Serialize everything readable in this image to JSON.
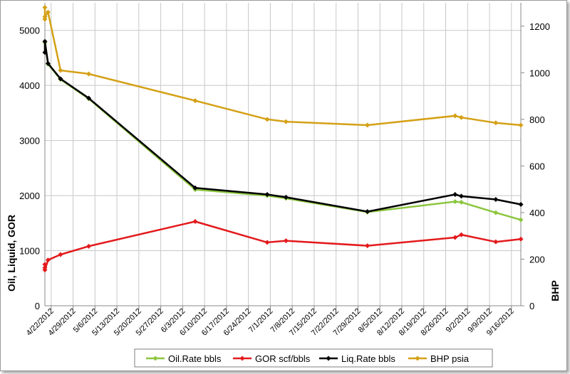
{
  "chart_data": {
    "type": "line",
    "x_tick_labels": [
      "4/22/2012",
      "4/29/2012",
      "5/6/2012",
      "5/13/2012",
      "5/20/2012",
      "5/27/2012",
      "6/3/2012",
      "6/10/2012",
      "6/17/2012",
      "6/24/2012",
      "7/1/2012",
      "7/8/2012",
      "7/15/2012",
      "7/22/2012",
      "7/29/2012",
      "8/5/2012",
      "8/12/2012",
      "8/19/2012",
      "8/26/2012",
      "9/2/2012",
      "9/9/2012",
      "9/16/2012"
    ],
    "x_range": [
      "4/20/2012",
      "9/19/2012"
    ],
    "y_left": {
      "label": "Oil, Liquid, GOR",
      "range": [
        0,
        5500
      ],
      "ticks": [
        0,
        1000,
        2000,
        3000,
        4000,
        5000
      ]
    },
    "y_right": {
      "label": "BHP",
      "range": [
        0,
        1300
      ],
      "ticks": [
        0,
        200,
        400,
        600,
        800,
        1000,
        1200
      ]
    },
    "grid": true,
    "legend_position": "bottom",
    "series": [
      {
        "name": "Oil.Rate bbls",
        "axis": "left",
        "color": "#8cc63f",
        "points": [
          [
            "4/20/2012",
            4600
          ],
          [
            "4/20/2012",
            4780
          ],
          [
            "4/21/2012",
            4390
          ],
          [
            "4/25/2012",
            4110
          ],
          [
            "5/4/2012",
            3760
          ],
          [
            "6/7/2012",
            2110
          ],
          [
            "6/30/2012",
            2000
          ],
          [
            "7/6/2012",
            1950
          ],
          [
            "8/1/2012",
            1700
          ],
          [
            "8/29/2012",
            1890
          ],
          [
            "8/31/2012",
            1880
          ],
          [
            "9/11/2012",
            1690
          ],
          [
            "9/19/2012",
            1560
          ]
        ]
      },
      {
        "name": "GOR scf/bbls",
        "axis": "left",
        "color": "#e31a1c",
        "points": [
          [
            "4/20/2012",
            690
          ],
          [
            "4/20/2012",
            750
          ],
          [
            "4/20/2012",
            650
          ],
          [
            "4/21/2012",
            830
          ],
          [
            "4/25/2012",
            930
          ],
          [
            "5/4/2012",
            1080
          ],
          [
            "6/7/2012",
            1530
          ],
          [
            "6/30/2012",
            1150
          ],
          [
            "7/6/2012",
            1180
          ],
          [
            "8/1/2012",
            1090
          ],
          [
            "8/29/2012",
            1240
          ],
          [
            "8/31/2012",
            1290
          ],
          [
            "9/11/2012",
            1160
          ],
          [
            "9/19/2012",
            1210
          ]
        ]
      },
      {
        "name": "Liq.Rate bbls",
        "axis": "left",
        "color": "#000000",
        "points": [
          [
            "4/20/2012",
            4600
          ],
          [
            "4/20/2012",
            4800
          ],
          [
            "4/21/2012",
            4400
          ],
          [
            "4/25/2012",
            4120
          ],
          [
            "5/4/2012",
            3770
          ],
          [
            "6/7/2012",
            2140
          ],
          [
            "6/30/2012",
            2020
          ],
          [
            "7/6/2012",
            1970
          ],
          [
            "8/1/2012",
            1710
          ],
          [
            "8/29/2012",
            2020
          ],
          [
            "8/31/2012",
            1990
          ],
          [
            "9/11/2012",
            1930
          ],
          [
            "9/19/2012",
            1840
          ]
        ]
      },
      {
        "name": "BHP psia",
        "axis": "right",
        "color": "#d4a015",
        "points": [
          [
            "4/20/2012",
            1230
          ],
          [
            "4/20/2012",
            1280
          ],
          [
            "4/20/2012",
            1240
          ],
          [
            "4/21/2012",
            1260
          ],
          [
            "4/25/2012",
            1010
          ],
          [
            "5/4/2012",
            995
          ],
          [
            "6/7/2012",
            880
          ],
          [
            "6/30/2012",
            800
          ],
          [
            "7/6/2012",
            790
          ],
          [
            "8/1/2012",
            775
          ],
          [
            "8/29/2012",
            815
          ],
          [
            "8/31/2012",
            808
          ],
          [
            "9/11/2012",
            785
          ],
          [
            "9/19/2012",
            775
          ]
        ]
      }
    ]
  }
}
